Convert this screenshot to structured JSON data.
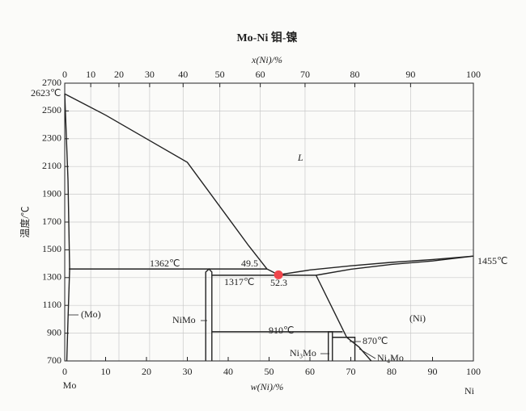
{
  "chart_data": {
    "type": "phase-diagram",
    "title": "Mo-Ni  钼-镍",
    "xlabel": "w(Ni)/%",
    "x2label": "x(Ni)/%",
    "ylabel": "温度/℃",
    "left_end": "Mo",
    "right_end": "Ni",
    "xlim": [
      0,
      100
    ],
    "ylim": [
      700,
      2700
    ],
    "xticks": [
      0,
      10,
      20,
      30,
      40,
      50,
      60,
      70,
      80,
      90,
      100
    ],
    "x2ticks": [
      0,
      10,
      20,
      30,
      40,
      50,
      60,
      70,
      80,
      90,
      100
    ],
    "yticks": [
      700,
      900,
      1100,
      1300,
      1500,
      1700,
      1900,
      2100,
      2300,
      2500,
      2700
    ],
    "grid": true,
    "line_color": "#222222",
    "boundaries": [
      {
        "x": [
          0,
          10,
          20,
          30,
          40,
          45,
          49.5
        ],
        "y": [
          2623,
          2470,
          2300,
          2130,
          1730,
          1530,
          1362
        ]
      },
      {
        "x": [
          49.5,
          52.3,
          60,
          70,
          80,
          90,
          100
        ],
        "y": [
          1362,
          1320,
          1355,
          1385,
          1410,
          1430,
          1455
        ]
      },
      {
        "x": [
          61.5,
          70,
          80,
          90,
          100
        ],
        "y": [
          1317,
          1360,
          1395,
          1420,
          1455
        ]
      },
      {
        "x": [
          1,
          49.5
        ],
        "y": [
          1362,
          1362
        ]
      },
      {
        "x": [
          36,
          61.5
        ],
        "y": [
          1317,
          1317
        ]
      },
      {
        "x": [
          61.5,
          69,
          72,
          75
        ],
        "y": [
          1317,
          870,
          800,
          700
        ]
      },
      {
        "x": [
          0,
          0.8,
          1.2,
          0.8,
          0.5
        ],
        "y": [
          2623,
          2000,
          1362,
          1000,
          700
        ]
      },
      {
        "x": [
          34.5,
          34.5,
          35.3,
          36,
          36
        ],
        "y": [
          700,
          1340,
          1362,
          1340,
          700
        ]
      },
      {
        "x": [
          36,
          68
        ],
        "y": [
          910,
          910
        ]
      },
      {
        "x": [
          64.5,
          64.5,
          65.5,
          65.5
        ],
        "y": [
          700,
          910,
          910,
          700
        ]
      },
      {
        "x": [
          65.5,
          71,
          71
        ],
        "y": [
          870,
          870,
          700
        ]
      }
    ],
    "point": {
      "x": 52.3,
      "y": 1320,
      "color": "#f0464b"
    },
    "annotations": [
      "2623℃",
      "L",
      "1362℃",
      "49.5",
      "52.3",
      "1317℃",
      "1455℃",
      "(Mo)",
      "NiMo",
      "(Ni)",
      "910℃",
      "870℃",
      "Ni₃Mo",
      "Ni₄Mo"
    ]
  }
}
